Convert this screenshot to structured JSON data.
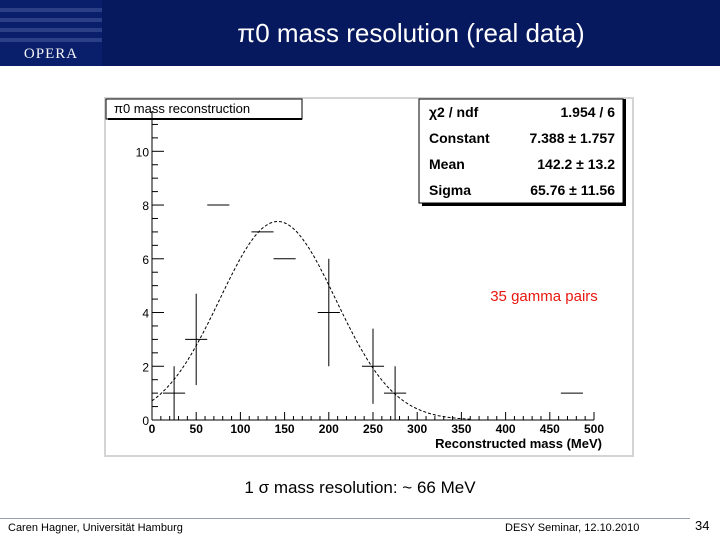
{
  "header": {
    "title": "π0 mass resolution (real data)",
    "logo_text": "OPERA"
  },
  "subtitle": "1 σ mass resolution: ~ 66 MeV",
  "footer": {
    "left": "Caren Hagner, Universität Hamburg",
    "right": "DESY Seminar, 12.10.2010",
    "page": "34"
  },
  "chart_data": {
    "type": "histogram",
    "title": "π0 mass reconstruction",
    "xlabel": "Reconstructed mass (MeV)",
    "ylabel": "",
    "xlim": [
      0,
      500
    ],
    "ylim": [
      0,
      11.5
    ],
    "xticks": [
      0,
      50,
      100,
      150,
      200,
      250,
      300,
      350,
      400,
      450,
      500
    ],
    "yticks": [
      0,
      2,
      4,
      6,
      8,
      10
    ],
    "bin_width": 25,
    "bins": [
      {
        "x": 25,
        "y": 1,
        "err": 1
      },
      {
        "x": 50,
        "y": 3,
        "err": 1.7
      },
      {
        "x": 75,
        "y": 8,
        "err": 0
      },
      {
        "x": 125,
        "y": 7,
        "err": 0
      },
      {
        "x": 150,
        "y": 6,
        "err": 0
      },
      {
        "x": 200,
        "y": 4,
        "err": 2
      },
      {
        "x": 250,
        "y": 2,
        "err": 1.4
      },
      {
        "x": 275,
        "y": 1,
        "err": 1
      },
      {
        "x": 475,
        "y": 1,
        "err": 0
      }
    ],
    "fit": {
      "type": "gaussian",
      "constant": 7.388,
      "mean": 142.2,
      "sigma": 65.76
    },
    "annotation": "35 gamma pairs",
    "stats": [
      {
        "label": "χ2 / ndf",
        "value": "1.954 / 6"
      },
      {
        "label": "Constant",
        "value": "7.388 ± 1.757"
      },
      {
        "label": "Mean",
        "value": "142.2 ± 13.2"
      },
      {
        "label": "Sigma",
        "value": "65.76 ± 11.56"
      }
    ]
  }
}
